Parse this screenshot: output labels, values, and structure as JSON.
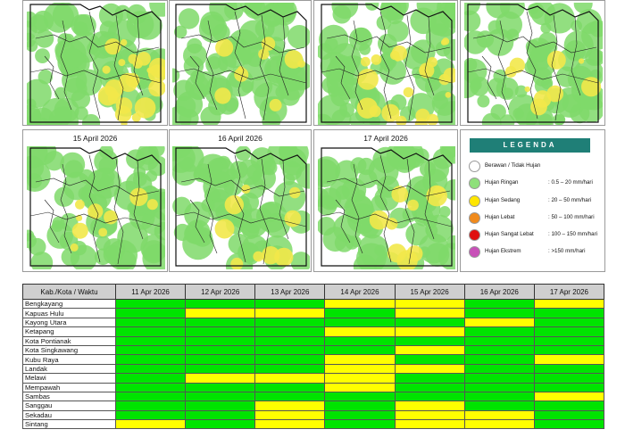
{
  "maps": [
    {
      "id": "map-1",
      "title": ""
    },
    {
      "id": "map-2",
      "title": ""
    },
    {
      "id": "map-3",
      "title": ""
    },
    {
      "id": "map-4",
      "title": ""
    },
    {
      "id": "map-5",
      "title": "15 April 2026"
    },
    {
      "id": "map-6",
      "title": "16 April 2026"
    },
    {
      "id": "map-7",
      "title": "17 April 2026"
    }
  ],
  "legend": {
    "title": "LEGENDA",
    "items": [
      {
        "label": "Berawan / Tidak Hujan",
        "range": "",
        "color": "#ffffff"
      },
      {
        "label": "Hujan Ringan",
        "range": ": 0.5 – 20 mm/hari",
        "color": "#8ee07a"
      },
      {
        "label": "Hujan Sedang",
        "range": ": 20 – 50 mm/hari",
        "color": "#ffe600"
      },
      {
        "label": "Hujan Lebat",
        "range": ": 50 – 100 mm/hari",
        "color": "#f08a1c"
      },
      {
        "label": "Hujan Sangat Lebat",
        "range": ": 100 – 150 mm/hari",
        "color": "#e01010"
      },
      {
        "label": "Hujan Ekstrem",
        "range": ": >150 mm/hari",
        "color": "#c850b8"
      }
    ]
  },
  "colors": {
    "green": "#00e400",
    "yellow": "#ffff00"
  },
  "table": {
    "header_first": "Kab./Kota / Waktu",
    "days": [
      "11 Apr 2026",
      "12 Apr 2026",
      "13 Apr 2026",
      "14 Apr 2026",
      "15 Apr 2026",
      "16 Apr 2026",
      "17 Apr 2026"
    ],
    "rows": [
      {
        "name": "Bengkayang",
        "values": [
          "green",
          "green",
          "green",
          "yellow",
          "yellow",
          "green",
          "yellow"
        ]
      },
      {
        "name": "Kapuas Hulu",
        "values": [
          "green",
          "yellow",
          "yellow",
          "green",
          "yellow",
          "green",
          "green"
        ]
      },
      {
        "name": "Kayong Utara",
        "values": [
          "green",
          "green",
          "green",
          "green",
          "green",
          "yellow",
          "green"
        ]
      },
      {
        "name": "Ketapang",
        "values": [
          "green",
          "green",
          "green",
          "yellow",
          "yellow",
          "green",
          "green"
        ]
      },
      {
        "name": "Kota Pontianak",
        "values": [
          "green",
          "green",
          "green",
          "green",
          "green",
          "green",
          "green"
        ]
      },
      {
        "name": "Kota Singkawang",
        "values": [
          "green",
          "green",
          "green",
          "green",
          "yellow",
          "green",
          "green"
        ]
      },
      {
        "name": "Kubu Raya",
        "values": [
          "green",
          "green",
          "green",
          "yellow",
          "green",
          "green",
          "yellow"
        ]
      },
      {
        "name": "Landak",
        "values": [
          "green",
          "green",
          "green",
          "yellow",
          "yellow",
          "green",
          "green"
        ]
      },
      {
        "name": "Melawi",
        "values": [
          "green",
          "yellow",
          "yellow",
          "yellow",
          "green",
          "green",
          "green"
        ]
      },
      {
        "name": "Mempawah",
        "values": [
          "green",
          "green",
          "green",
          "yellow",
          "green",
          "green",
          "green"
        ]
      },
      {
        "name": "Sambas",
        "values": [
          "green",
          "green",
          "green",
          "green",
          "green",
          "green",
          "yellow"
        ]
      },
      {
        "name": "Sanggau",
        "values": [
          "green",
          "green",
          "yellow",
          "green",
          "yellow",
          "green",
          "green"
        ]
      },
      {
        "name": "Sekadau",
        "values": [
          "green",
          "green",
          "yellow",
          "green",
          "yellow",
          "yellow",
          "green"
        ]
      },
      {
        "name": "Sintang",
        "values": [
          "yellow",
          "green",
          "yellow",
          "green",
          "yellow",
          "yellow",
          "green"
        ]
      }
    ]
  }
}
